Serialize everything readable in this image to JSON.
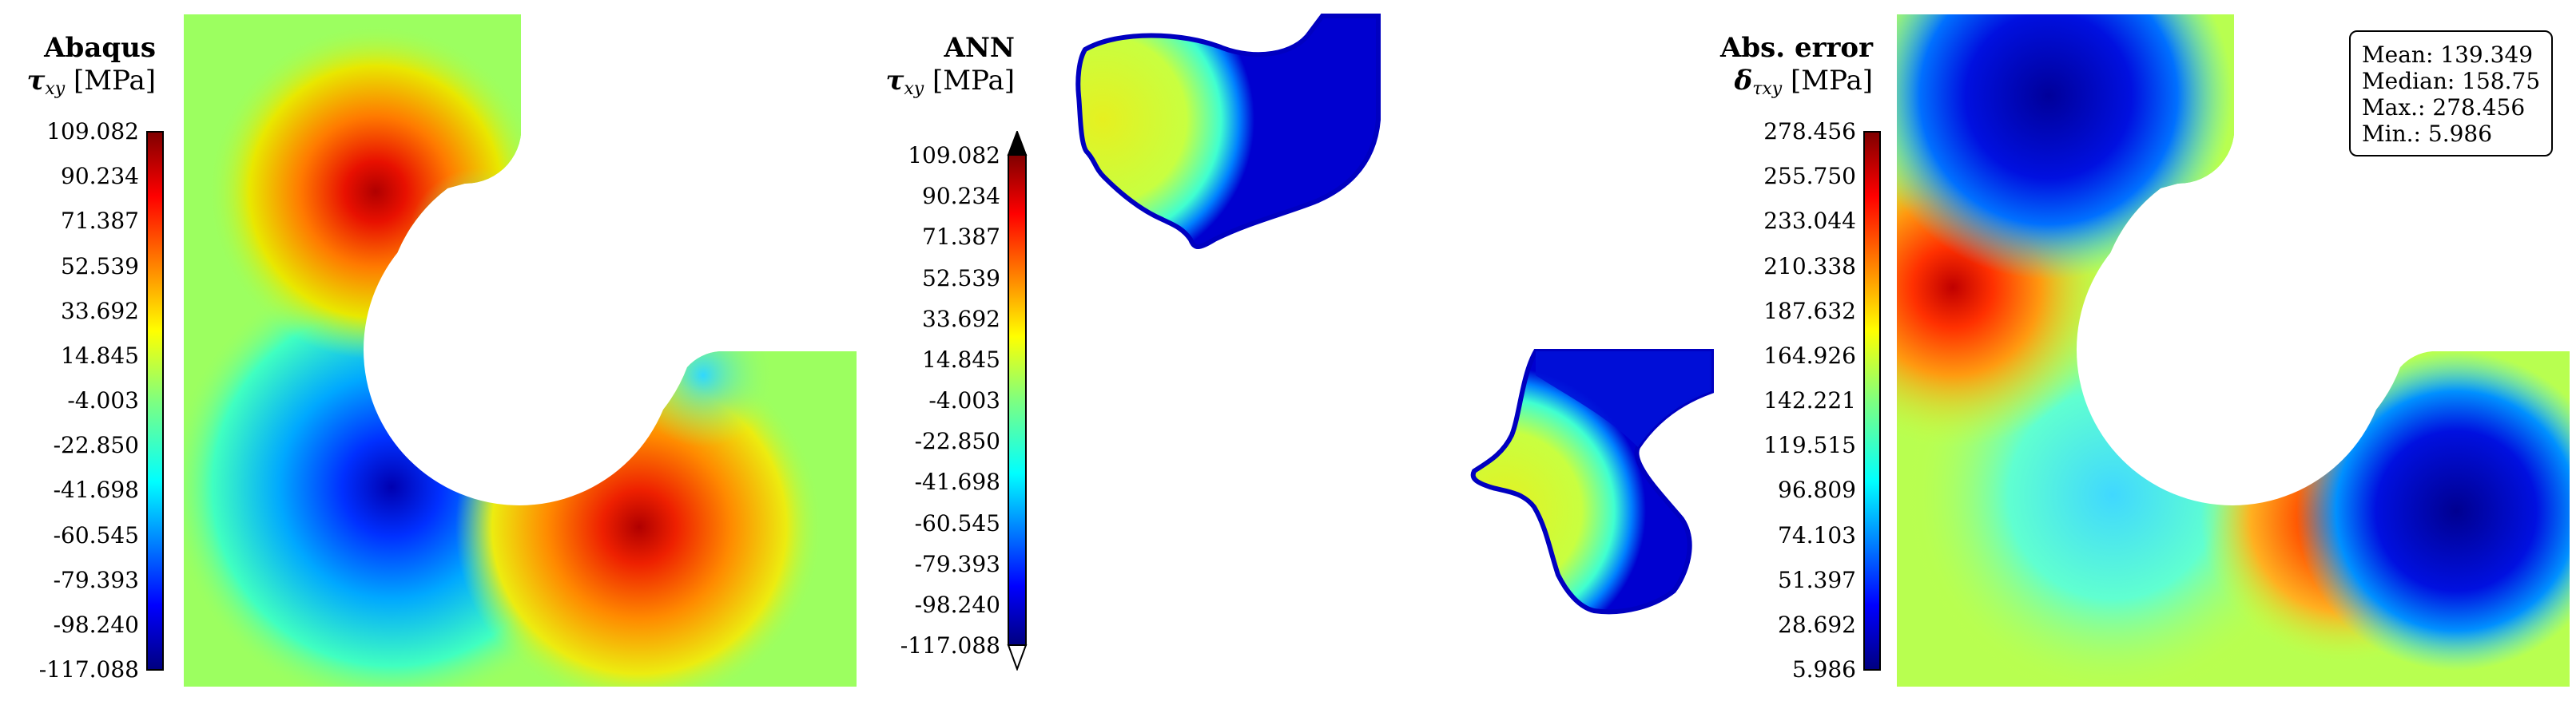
{
  "chart_data": [
    {
      "type": "heatmap",
      "title": "Abaqus",
      "colorbar_label": "τ",
      "colorbar_subscript": "xy",
      "colorbar_unit": "[MPa]",
      "colormap": "jet",
      "range": [
        -117.088,
        109.082
      ],
      "ticks": [
        "109.082",
        "90.234",
        "71.387",
        "52.539",
        "33.692",
        "14.845",
        "-4.003",
        "-22.850",
        "-41.698",
        "-60.545",
        "-79.393",
        "-98.240",
        "-117.088"
      ],
      "extend_arrows": false
    },
    {
      "type": "heatmap",
      "title": "ANN",
      "colorbar_label": "τ",
      "colorbar_subscript": "xy",
      "colorbar_unit": "[MPa]",
      "colormap": "jet",
      "range": [
        -117.088,
        109.082
      ],
      "ticks": [
        "109.082",
        "90.234",
        "71.387",
        "52.539",
        "33.692",
        "14.845",
        "-4.003",
        "-22.850",
        "-41.698",
        "-60.545",
        "-79.393",
        "-98.240",
        "-117.088"
      ],
      "extend_arrows": true
    },
    {
      "type": "heatmap",
      "title": "Abs. error",
      "colorbar_label": "δ",
      "colorbar_subscript": "τxy",
      "colorbar_unit": "[MPa]",
      "colormap": "jet",
      "range": [
        5.986,
        278.456
      ],
      "ticks": [
        "278.456",
        "255.750",
        "233.044",
        "210.338",
        "187.632",
        "164.926",
        "142.221",
        "119.515",
        "96.809",
        "74.103",
        "51.397",
        "28.692",
        "5.986"
      ],
      "extend_arrows": false,
      "stats": {
        "mean": "Mean: 139.349",
        "median": "Median: 158.75",
        "max": "Max.: 278.456",
        "min": "Min.: 5.986"
      }
    }
  ]
}
